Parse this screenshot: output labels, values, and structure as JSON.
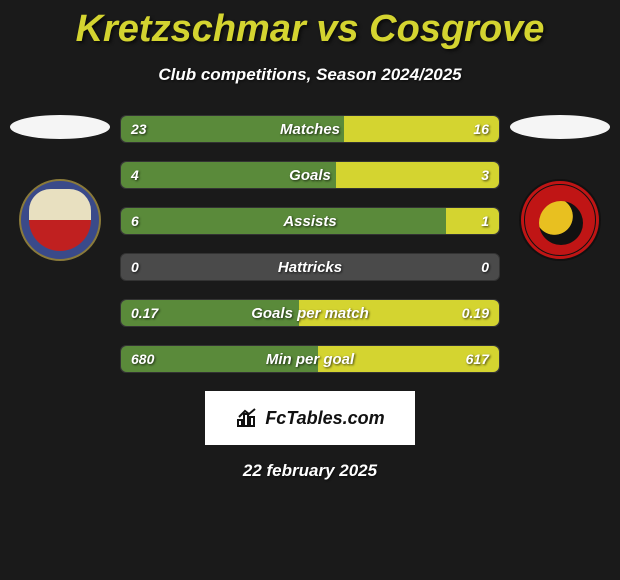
{
  "title": "Kretzschmar vs Cosgrove",
  "subtitle": "Club competitions, Season 2024/2025",
  "footer_date": "22 february 2025",
  "brand": "FcTables.com",
  "colors": {
    "background": "#1a1a1a",
    "title": "#d4d430",
    "text": "#ffffff",
    "bar_bg": "#4a4a4a",
    "fill_left": "#5a8a3a",
    "fill_right": "#d4d430",
    "badge_bg": "#ffffff"
  },
  "stats": [
    {
      "label": "Matches",
      "left_val": "23",
      "right_val": "16",
      "left_pct": 59,
      "right_pct": 41
    },
    {
      "label": "Goals",
      "left_val": "4",
      "right_val": "3",
      "left_pct": 57,
      "right_pct": 43
    },
    {
      "label": "Assists",
      "left_val": "6",
      "right_val": "1",
      "left_pct": 86,
      "right_pct": 14
    },
    {
      "label": "Hattricks",
      "left_val": "0",
      "right_val": "0",
      "left_pct": 0,
      "right_pct": 0
    },
    {
      "label": "Goals per match",
      "left_val": "0.17",
      "right_val": "0.19",
      "left_pct": 47,
      "right_pct": 53
    },
    {
      "label": "Min per goal",
      "left_val": "680",
      "right_val": "617",
      "left_pct": 52,
      "right_pct": 48
    }
  ]
}
